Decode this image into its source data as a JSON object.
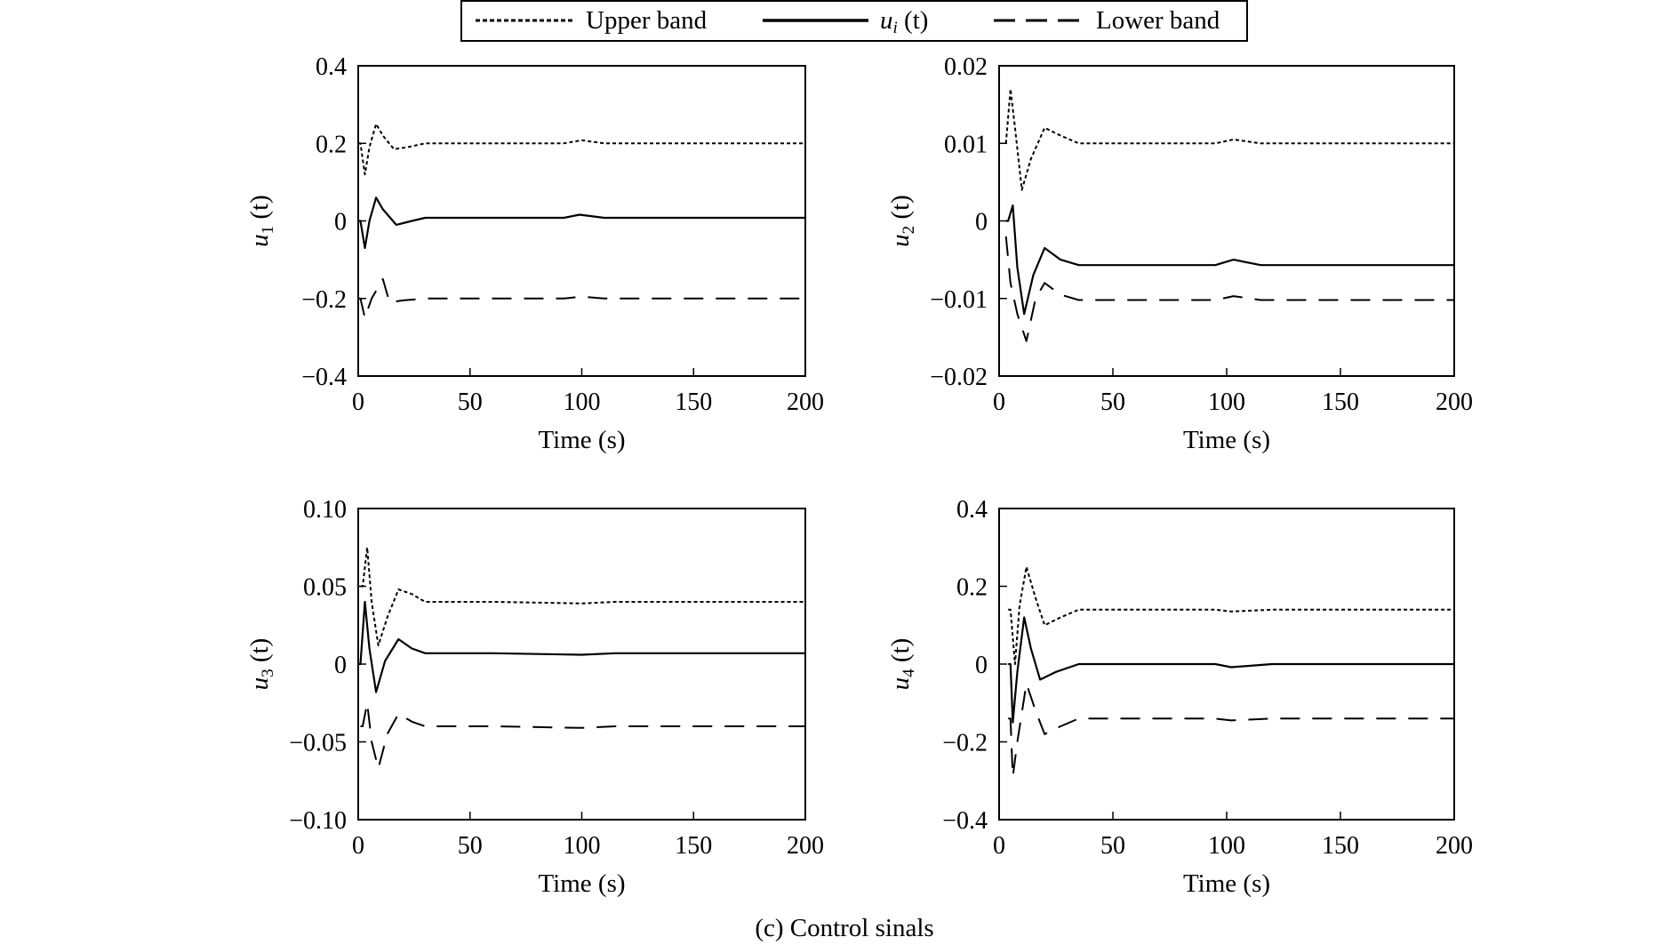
{
  "legend": {
    "items": [
      {
        "label": "Upper band",
        "style": "dotted"
      },
      {
        "label_main": "u",
        "label_sub": "i",
        "label_rest": " (t)",
        "style": "solid"
      },
      {
        "label": "Lower band",
        "style": "dashed"
      }
    ]
  },
  "caption": "(c) Control sinals",
  "colors": {
    "line": "#000000",
    "background": "#ffffff"
  },
  "chart_data": [
    {
      "type": "line",
      "ylabel_main": "u",
      "ylabel_sub": "1",
      "ylabel_rest": " (t)",
      "xlabel": "Time (s)",
      "xlim": [
        0,
        200
      ],
      "ylim": [
        -0.4,
        0.4
      ],
      "xticks": [
        0,
        50,
        100,
        150,
        200
      ],
      "xtick_labels": [
        "0",
        "50",
        "100",
        "150",
        "200"
      ],
      "yticks": [
        -0.4,
        -0.2,
        0,
        0.2,
        0.4
      ],
      "ytick_labels": [
        "−0.4",
        "−0.2",
        "0",
        "0.2",
        "0.4"
      ],
      "grid": false,
      "series": [
        {
          "name": "Upper band",
          "style": "dotted",
          "x": [
            0,
            1,
            3,
            5,
            8,
            11,
            16,
            22,
            30,
            60,
            92,
            100,
            110,
            200
          ],
          "y": [
            0.2,
            0.2,
            0.12,
            0.19,
            0.25,
            0.22,
            0.185,
            0.19,
            0.2,
            0.2,
            0.2,
            0.208,
            0.2,
            0.2
          ]
        },
        {
          "name": "u_i (t)",
          "style": "solid",
          "x": [
            0,
            1,
            3,
            5,
            8,
            11,
            17,
            24,
            30,
            60,
            92,
            99,
            110,
            200
          ],
          "y": [
            0,
            0,
            -0.07,
            0.0,
            0.06,
            0.03,
            -0.01,
            0.0,
            0.008,
            0.008,
            0.008,
            0.016,
            0.008,
            0.008
          ]
        },
        {
          "name": "Lower band",
          "style": "dashed",
          "x": [
            0,
            1,
            3,
            6,
            11,
            14,
            20,
            30,
            60,
            92,
            100,
            110,
            200
          ],
          "y": [
            -0.2,
            -0.2,
            -0.25,
            -0.2,
            -0.15,
            -0.21,
            -0.205,
            -0.2,
            -0.2,
            -0.2,
            -0.195,
            -0.2,
            -0.2
          ]
        }
      ]
    },
    {
      "type": "line",
      "ylabel_main": "u",
      "ylabel_sub": "2",
      "ylabel_rest": " (t)",
      "xlabel": "Time (s)",
      "xlim": [
        0,
        200
      ],
      "ylim": [
        -0.02,
        0.02
      ],
      "xticks": [
        0,
        50,
        100,
        150,
        200
      ],
      "xtick_labels": [
        "0",
        "50",
        "100",
        "150",
        "200"
      ],
      "yticks": [
        -0.02,
        -0.01,
        0,
        0.01,
        0.02
      ],
      "ytick_labels": [
        "−0.02",
        "−0.01",
        "0",
        "0.01",
        "0.02"
      ],
      "grid": false,
      "series": [
        {
          "name": "Upper band",
          "style": "dotted",
          "x": [
            3,
            5,
            7,
            10,
            14,
            20,
            27,
            35,
            95,
            103,
            115,
            200
          ],
          "y": [
            0.01,
            0.017,
            0.012,
            0.004,
            0.008,
            0.012,
            0.011,
            0.01,
            0.01,
            0.0105,
            0.01,
            0.01
          ]
        },
        {
          "name": "u_i (t)",
          "style": "solid",
          "x": [
            3,
            4,
            6,
            8,
            11,
            15,
            20,
            27,
            35,
            95,
            103,
            115,
            200
          ],
          "y": [
            0,
            0,
            0.002,
            -0.006,
            -0.012,
            -0.007,
            -0.0035,
            -0.005,
            -0.0057,
            -0.0057,
            -0.005,
            -0.0057,
            -0.0057
          ]
        },
        {
          "name": "Lower band",
          "style": "dashed",
          "x": [
            3,
            5,
            8,
            12,
            16,
            20,
            27,
            35,
            95,
            103,
            115,
            200
          ],
          "y": [
            -0.002,
            -0.008,
            -0.012,
            -0.0155,
            -0.01,
            -0.008,
            -0.0095,
            -0.0102,
            -0.0102,
            -0.0097,
            -0.0102,
            -0.0102
          ]
        }
      ]
    },
    {
      "type": "line",
      "ylabel_main": "u",
      "ylabel_sub": "3",
      "ylabel_rest": " (t)",
      "xlabel": "Time (s)",
      "xlim": [
        0,
        200
      ],
      "ylim": [
        -0.1,
        0.1
      ],
      "xticks": [
        0,
        50,
        100,
        150,
        200
      ],
      "xtick_labels": [
        "0",
        "50",
        "100",
        "150",
        "200"
      ],
      "yticks": [
        -0.1,
        -0.05,
        0,
        0.05,
        0.1
      ],
      "ytick_labels": [
        "−0.10",
        "−0.05",
        "0",
        "0.05",
        "0.10"
      ],
      "grid": false,
      "series": [
        {
          "name": "Upper band",
          "style": "dotted",
          "x": [
            1,
            2,
            4,
            6,
            9,
            13,
            18,
            24,
            30,
            60,
            100,
            115,
            200
          ],
          "y": [
            0.05,
            0.05,
            0.075,
            0.04,
            0.012,
            0.03,
            0.048,
            0.045,
            0.04,
            0.04,
            0.039,
            0.04,
            0.04
          ]
        },
        {
          "name": "u_i (t)",
          "style": "solid",
          "x": [
            0,
            1,
            3,
            5,
            8,
            12,
            18,
            24,
            30,
            60,
            100,
            115,
            200
          ],
          "y": [
            0,
            0,
            0.04,
            0.01,
            -0.018,
            0.002,
            0.016,
            0.01,
            0.007,
            0.007,
            0.006,
            0.007,
            0.007
          ]
        },
        {
          "name": "Lower band",
          "style": "dashed",
          "x": [
            1,
            2,
            4,
            6,
            9,
            13,
            18,
            24,
            30,
            60,
            100,
            115,
            200
          ],
          "y": [
            -0.04,
            -0.04,
            -0.025,
            -0.05,
            -0.067,
            -0.045,
            -0.032,
            -0.037,
            -0.04,
            -0.04,
            -0.041,
            -0.04,
            -0.04
          ]
        }
      ]
    },
    {
      "type": "line",
      "ylabel_main": "u",
      "ylabel_sub": "4",
      "ylabel_rest": " (t)",
      "xlabel": "Time (s)",
      "xlim": [
        0,
        200
      ],
      "ylim": [
        -0.4,
        0.4
      ],
      "xticks": [
        0,
        50,
        100,
        150,
        200
      ],
      "xtick_labels": [
        "0",
        "50",
        "100",
        "150",
        "200"
      ],
      "yticks": [
        -0.4,
        -0.2,
        0,
        0.2,
        0.4
      ],
      "ytick_labels": [
        "−0.4",
        "−0.2",
        "0",
        "0.2",
        "0.4"
      ],
      "grid": false,
      "series": [
        {
          "name": "Upper band",
          "style": "dotted",
          "x": [
            4,
            5,
            7,
            9,
            12,
            16,
            20,
            27,
            35,
            95,
            102,
            120,
            200
          ],
          "y": [
            0.14,
            0.14,
            0.0,
            0.15,
            0.25,
            0.17,
            0.1,
            0.12,
            0.14,
            0.14,
            0.135,
            0.14,
            0.14
          ]
        },
        {
          "name": "u_i (t)",
          "style": "solid",
          "x": [
            4,
            5,
            6,
            8,
            11,
            14,
            18,
            25,
            35,
            95,
            102,
            120,
            200
          ],
          "y": [
            0,
            0,
            -0.15,
            -0.02,
            0.12,
            0.04,
            -0.04,
            -0.02,
            0,
            0,
            -0.008,
            0,
            0
          ]
        },
        {
          "name": "Lower band",
          "style": "dashed",
          "x": [
            4,
            5,
            6,
            8,
            12,
            16,
            20,
            27,
            35,
            95,
            102,
            120,
            200
          ],
          "y": [
            -0.14,
            -0.14,
            -0.29,
            -0.2,
            -0.05,
            -0.12,
            -0.18,
            -0.16,
            -0.14,
            -0.14,
            -0.145,
            -0.14,
            -0.14
          ]
        }
      ]
    }
  ]
}
